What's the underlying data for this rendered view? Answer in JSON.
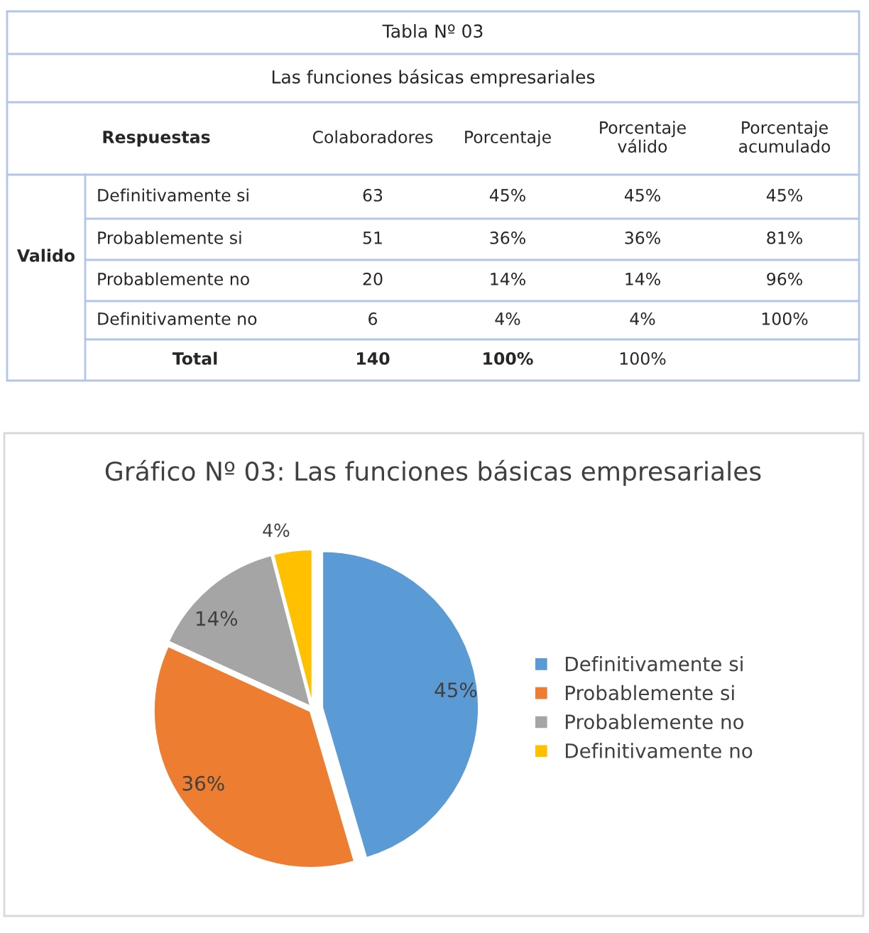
{
  "chart_data": [
    {
      "type": "other",
      "title": "Tabla Nº 03",
      "subtitle": "Las funciones básicas empresariales",
      "annotations": [
        "Respuestas",
        "Colaboradores",
        "Porcentaje",
        "Porcentaje\nválido",
        "Porcentaje\nacumulado",
        "Valido",
        "Definitivamente si",
        "63",
        "45%",
        "45%",
        "45%",
        "Probablemente si",
        "51",
        "36%",
        "36%",
        "81%",
        "Probablemente no",
        "20",
        "14%",
        "14%",
        "96%",
        "Definitivamente no",
        "6",
        "4%",
        "4%",
        "100%",
        "Total",
        "140",
        "100%",
        "100%"
      ]
    },
    {
      "type": "pie",
      "title": "Gráfico Nº 03: Las funciones básicas empresariales",
      "categories": [
        "Definitivamente si",
        "Probablemente si",
        "Probablemente no",
        "Definitivamente no"
      ],
      "values": [
        45,
        36,
        14,
        4
      ],
      "colors": [
        "#5b9bd5",
        "#ed7d31",
        "#a5a5a5",
        "#ffc000"
      ],
      "value_labels": [
        "45%",
        "36%",
        "14%",
        "4%"
      ],
      "legend": "right"
    }
  ]
}
